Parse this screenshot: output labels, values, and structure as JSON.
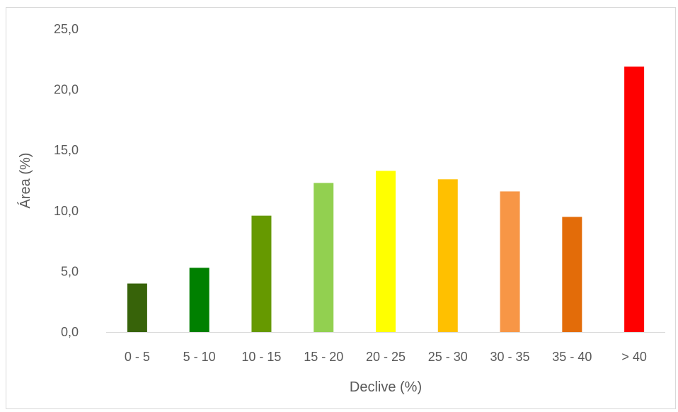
{
  "chart_data": {
    "type": "bar",
    "title": "",
    "xlabel": "Declive (%)",
    "ylabel": "Área (%)",
    "categories": [
      "0 - 5",
      "5 - 10",
      "10 - 15",
      "15 - 20",
      "20 - 25",
      "25 - 30",
      "30 - 35",
      "35 - 40",
      "> 40"
    ],
    "values": [
      4.0,
      5.3,
      9.6,
      12.3,
      13.3,
      12.6,
      11.6,
      9.5,
      21.9
    ],
    "bar_colors": [
      "#376309",
      "#008000",
      "#669900",
      "#92D050",
      "#FFFF00",
      "#FFC000",
      "#F79646",
      "#E36C09",
      "#FF0000"
    ],
    "ylim": [
      0,
      25
    ],
    "yticks": [
      "0,0",
      "5,0",
      "10,0",
      "15,0",
      "20,0",
      "25,0"
    ],
    "ytick_values": [
      0,
      5,
      10,
      15,
      20,
      25
    ],
    "grid": false,
    "legend": "none"
  }
}
